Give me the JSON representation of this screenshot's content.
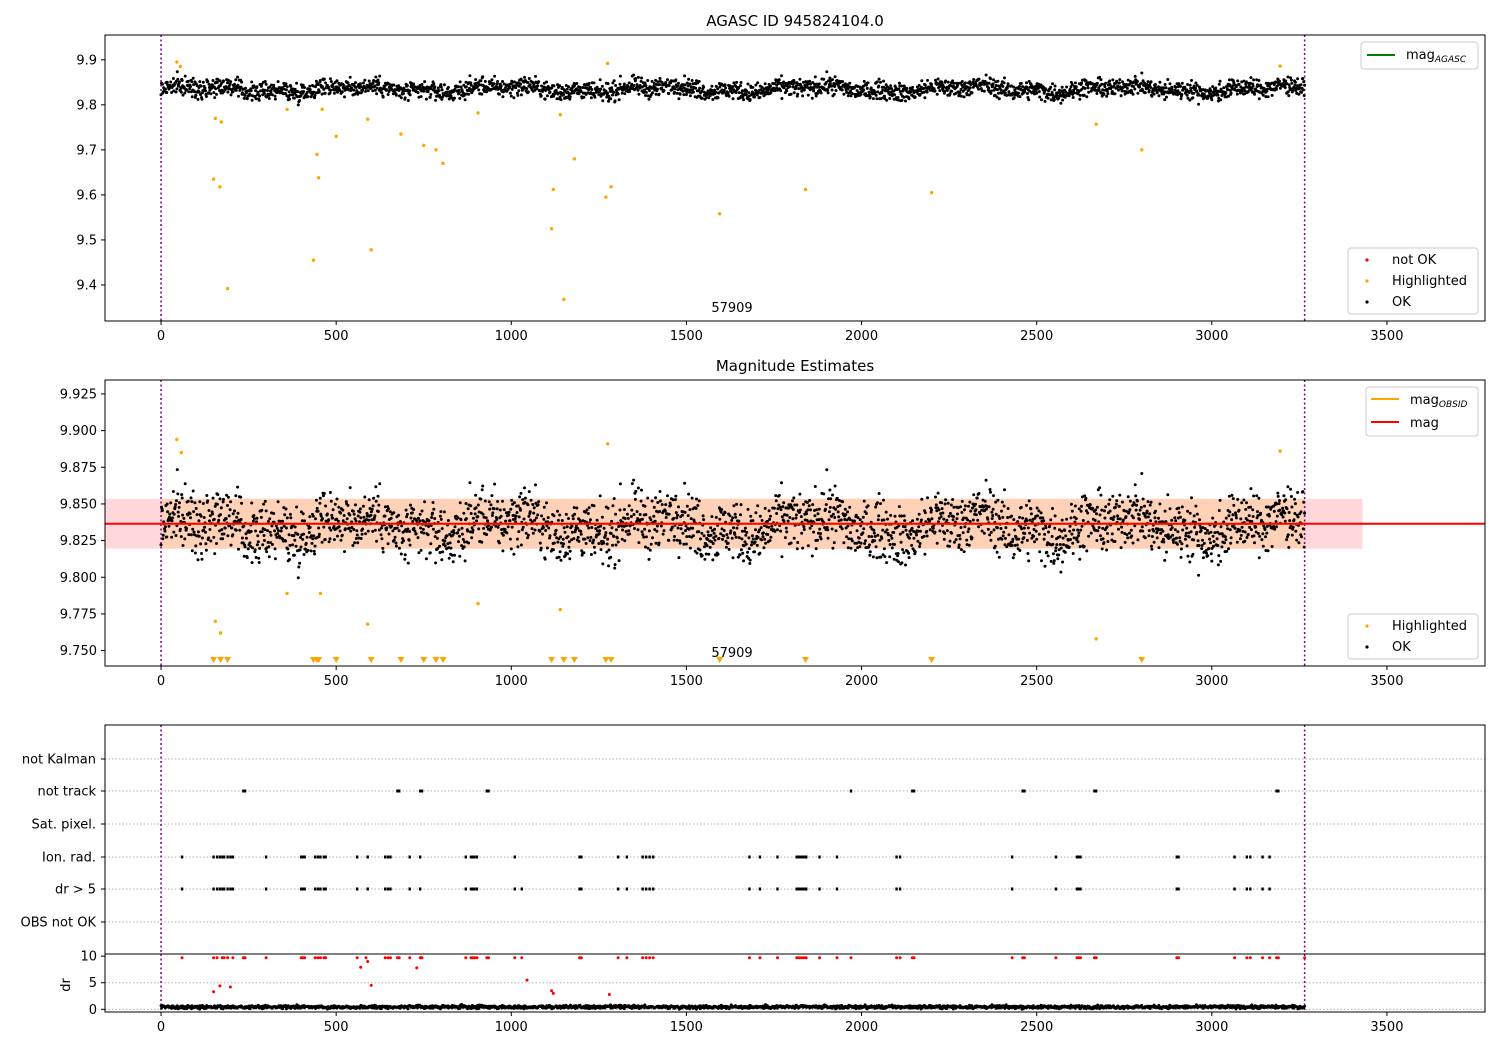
{
  "figure": {
    "panel1_title": "AGASC ID 945824104.0",
    "panel2_title": "Magnitude Estimates",
    "obsid_label": "57909"
  },
  "legends": {
    "p1_line_base": "mag",
    "p1_line_sub": "AGASC",
    "p1_notok": "not OK",
    "p1_highlighted": "Highlighted",
    "p1_ok": "OK",
    "p2_line1_base": "mag",
    "p2_line1_sub": "OBSID",
    "p2_line2": "mag",
    "p2_highlighted": "Highlighted",
    "p2_ok": "OK"
  },
  "colors": {
    "ok": "#000000",
    "highlighted": "#ffa500",
    "not_ok": "#ff0000",
    "mag_agasc_line": "#008000",
    "mag_obsid_line": "#ffa500",
    "mag_line": "#ff0000",
    "obs_boundary": "#800080"
  },
  "chart_data": [
    {
      "type": "scatter",
      "title": "AGASC ID 945824104.0",
      "xlabel": "",
      "ylabel": "",
      "xlim": [
        -160,
        3780
      ],
      "ylim": [
        9.32,
        9.955
      ],
      "x_ticks": [
        0,
        500,
        1000,
        1500,
        2000,
        2500,
        3000,
        3500
      ],
      "y_ticks": [
        9.4,
        9.5,
        9.6,
        9.7,
        9.8,
        9.9
      ],
      "y_tick_labels": [
        "9.4",
        "9.5",
        "9.6",
        "9.7",
        "9.8",
        "9.9"
      ],
      "grid": false,
      "legend_position_line": "top-right",
      "legend_position_points": "bottom-right",
      "obs_boundaries": [
        0,
        3265
      ],
      "obsid_annotation": {
        "x": 1632,
        "text": "57909"
      },
      "series": [
        {
          "name": "OK",
          "kind": "band",
          "x_range": [
            0,
            3265
          ],
          "center": 9.835,
          "spread": 0.018,
          "count": 2600
        },
        {
          "name": "Highlighted",
          "points": [
            [
              45,
              9.895
            ],
            [
              55,
              9.885
            ],
            [
              150,
              9.635
            ],
            [
              155,
              9.77
            ],
            [
              168,
              9.618
            ],
            [
              172,
              9.762
            ],
            [
              190,
              9.392
            ],
            [
              360,
              9.79
            ],
            [
              435,
              9.455
            ],
            [
              445,
              9.69
            ],
            [
              450,
              9.638
            ],
            [
              460,
              9.79
            ],
            [
              500,
              9.73
            ],
            [
              590,
              9.768
            ],
            [
              600,
              9.478
            ],
            [
              685,
              9.735
            ],
            [
              750,
              9.71
            ],
            [
              785,
              9.7
            ],
            [
              805,
              9.67
            ],
            [
              905,
              9.782
            ],
            [
              1115,
              9.525
            ],
            [
              1120,
              9.612
            ],
            [
              1140,
              9.778
            ],
            [
              1150,
              9.368
            ],
            [
              1180,
              9.68
            ],
            [
              1270,
              9.595
            ],
            [
              1275,
              9.892
            ],
            [
              1285,
              9.618
            ],
            [
              1595,
              9.558
            ],
            [
              1840,
              9.612
            ],
            [
              2200,
              9.605
            ],
            [
              2670,
              9.757
            ],
            [
              2800,
              9.7
            ],
            [
              3195,
              9.886
            ]
          ]
        },
        {
          "name": "not OK",
          "points": []
        }
      ]
    },
    {
      "type": "scatter",
      "title": "Magnitude Estimates",
      "xlabel": "",
      "ylabel": "",
      "xlim": [
        -160,
        3780
      ],
      "ylim": [
        9.7395,
        9.9345
      ],
      "x_ticks": [
        0,
        500,
        1000,
        1500,
        2000,
        2500,
        3000,
        3500
      ],
      "y_ticks": [
        9.75,
        9.775,
        9.8,
        9.825,
        9.85,
        9.875,
        9.9,
        9.925
      ],
      "y_tick_labels": [
        "9.750",
        "9.775",
        "9.800",
        "9.825",
        "9.850",
        "9.875",
        "9.900",
        "9.925"
      ],
      "grid": false,
      "legend_position_line": "top-right",
      "legend_position_points": "bottom-right",
      "mag": 9.8365,
      "mag_band": [
        9.8195,
        9.8535
      ],
      "mag_band_x": [
        -160,
        3430
      ],
      "mag_obsid": 9.8365,
      "mag_obsid_band": [
        9.8195,
        9.8535
      ],
      "mag_obsid_band_x": [
        0,
        3265
      ],
      "obs_boundaries": [
        0,
        3265
      ],
      "obsid_annotation": {
        "x": 1632,
        "text": "57909"
      },
      "series": [
        {
          "name": "OK",
          "kind": "band",
          "x_range": [
            0,
            3265
          ],
          "center": 9.835,
          "spread": 0.018,
          "count": 2600
        },
        {
          "name": "Highlighted",
          "points": [
            [
              45,
              9.894
            ],
            [
              58,
              9.885
            ],
            [
              155,
              9.77
            ],
            [
              170,
              9.762
            ],
            [
              360,
              9.789
            ],
            [
              455,
              9.789
            ],
            [
              590,
              9.768
            ],
            [
              905,
              9.782
            ],
            [
              1140,
              9.778
            ],
            [
              1275,
              9.891
            ],
            [
              2670,
              9.758
            ],
            [
              3195,
              9.886
            ]
          ]
        },
        {
          "name": "Highlighted (off-scale, below axis)",
          "marker": "triangle-down",
          "x": [
            150,
            170,
            190,
            435,
            445,
            450,
            500,
            600,
            685,
            750,
            785,
            805,
            1115,
            1150,
            1180,
            1270,
            1285,
            1595,
            1840,
            2200,
            2800
          ]
        }
      ]
    },
    {
      "type": "scatter",
      "title": "",
      "xlabel": "",
      "ylabel": "",
      "xlim": [
        -160,
        3780
      ],
      "categories": [
        "not Kalman",
        "not track",
        "Sat. pixel.",
        "Ion. rad.",
        "dr > 5",
        "OBS not OK"
      ],
      "grid": true,
      "obs_boundaries": [
        0,
        3265
      ],
      "series": [
        {
          "name": "not Kalman",
          "x": []
        },
        {
          "name": "not track",
          "x": [
            235,
            240,
            675,
            680,
            740,
            745,
            930,
            935,
            1970,
            2145,
            2150,
            2460,
            2465,
            2665,
            2670,
            3185,
            3190
          ]
        },
        {
          "name": "Sat. pixel.",
          "x": []
        },
        {
          "name": "Ion. rad.",
          "x": [
            60,
            150,
            160,
            168,
            175,
            180,
            190,
            198,
            205,
            300,
            400,
            405,
            410,
            440,
            448,
            455,
            465,
            470,
            560,
            590,
            640,
            648,
            655,
            710,
            740,
            870,
            885,
            890,
            895,
            902,
            1010,
            1195,
            1200,
            1305,
            1330,
            1375,
            1385,
            1395,
            1405,
            1680,
            1710,
            1760,
            1815,
            1822,
            1828,
            1835,
            1842,
            1880,
            1930,
            2100,
            2110,
            2430,
            2555,
            2615,
            2620,
            2625,
            2900,
            2905,
            3065,
            3100,
            3110,
            3145,
            3165
          ]
        },
        {
          "name": "dr > 5",
          "x": [
            60,
            150,
            160,
            168,
            175,
            180,
            190,
            198,
            205,
            300,
            400,
            405,
            410,
            440,
            448,
            455,
            465,
            470,
            560,
            590,
            640,
            648,
            655,
            710,
            740,
            870,
            885,
            890,
            895,
            902,
            1010,
            1030,
            1195,
            1200,
            1305,
            1330,
            1375,
            1385,
            1395,
            1405,
            1680,
            1710,
            1760,
            1815,
            1822,
            1828,
            1835,
            1842,
            1880,
            1930,
            2100,
            2110,
            2430,
            2555,
            2615,
            2620,
            2625,
            2900,
            2905,
            3065,
            3100,
            3110,
            3145,
            3165
          ]
        },
        {
          "name": "OBS not OK",
          "x": []
        }
      ]
    },
    {
      "type": "scatter",
      "title": "",
      "xlabel": "",
      "ylabel": "dr",
      "xlim": [
        -160,
        3780
      ],
      "ylim": [
        -0.5,
        10.4
      ],
      "x_ticks": [
        0,
        500,
        1000,
        1500,
        2000,
        2500,
        3000,
        3500
      ],
      "y_ticks": [
        0,
        5,
        10
      ],
      "y_tick_labels": [
        "0",
        "5",
        "10"
      ],
      "grid": true,
      "obs_boundaries": [
        0,
        3265
      ],
      "series": [
        {
          "name": "OK",
          "kind": "band",
          "x_range": [
            0,
            3265
          ],
          "center": 0.45,
          "spread": 0.12,
          "count": 2400
        },
        {
          "name": "not OK",
          "points": [
            [
              60,
              9.7
            ],
            [
              150,
              3.3
            ],
            [
              150,
              9.7
            ],
            [
              160,
              9.7
            ],
            [
              168,
              4.4
            ],
            [
              175,
              9.7
            ],
            [
              180,
              9.7
            ],
            [
              190,
              9.7
            ],
            [
              198,
              4.2
            ],
            [
              205,
              9.7
            ],
            [
              235,
              9.7
            ],
            [
              240,
              9.7
            ],
            [
              300,
              9.7
            ],
            [
              400,
              9.7
            ],
            [
              405,
              9.7
            ],
            [
              410,
              9.7
            ],
            [
              440,
              9.7
            ],
            [
              448,
              9.7
            ],
            [
              455,
              9.7
            ],
            [
              465,
              9.7
            ],
            [
              470,
              9.7
            ],
            [
              560,
              9.7
            ],
            [
              570,
              7.9
            ],
            [
              585,
              9.7
            ],
            [
              590,
              9.0
            ],
            [
              600,
              4.5
            ],
            [
              640,
              9.7
            ],
            [
              648,
              9.7
            ],
            [
              655,
              9.7
            ],
            [
              675,
              9.7
            ],
            [
              680,
              9.7
            ],
            [
              710,
              9.7
            ],
            [
              730,
              7.8
            ],
            [
              740,
              9.7
            ],
            [
              745,
              9.7
            ],
            [
              870,
              9.7
            ],
            [
              885,
              9.7
            ],
            [
              890,
              9.7
            ],
            [
              895,
              9.7
            ],
            [
              902,
              9.7
            ],
            [
              930,
              9.7
            ],
            [
              935,
              9.7
            ],
            [
              1010,
              9.7
            ],
            [
              1030,
              9.7
            ],
            [
              1045,
              5.5
            ],
            [
              1115,
              3.5
            ],
            [
              1120,
              3.0
            ],
            [
              1195,
              9.7
            ],
            [
              1200,
              9.7
            ],
            [
              1280,
              2.8
            ],
            [
              1305,
              9.7
            ],
            [
              1330,
              9.7
            ],
            [
              1375,
              9.7
            ],
            [
              1385,
              9.7
            ],
            [
              1395,
              9.7
            ],
            [
              1405,
              9.7
            ],
            [
              1680,
              9.7
            ],
            [
              1710,
              9.7
            ],
            [
              1760,
              9.7
            ],
            [
              1815,
              9.7
            ],
            [
              1822,
              9.7
            ],
            [
              1828,
              9.7
            ],
            [
              1835,
              9.7
            ],
            [
              1842,
              9.7
            ],
            [
              1880,
              9.7
            ],
            [
              1930,
              9.7
            ],
            [
              1970,
              9.7
            ],
            [
              2100,
              9.7
            ],
            [
              2110,
              9.7
            ],
            [
              2145,
              9.7
            ],
            [
              2150,
              9.7
            ],
            [
              2430,
              9.7
            ],
            [
              2460,
              9.7
            ],
            [
              2465,
              9.7
            ],
            [
              2555,
              9.7
            ],
            [
              2615,
              9.7
            ],
            [
              2620,
              9.7
            ],
            [
              2625,
              9.7
            ],
            [
              2665,
              9.7
            ],
            [
              2670,
              9.7
            ],
            [
              2900,
              9.7
            ],
            [
              2905,
              9.7
            ],
            [
              3065,
              9.7
            ],
            [
              3100,
              9.7
            ],
            [
              3110,
              9.7
            ],
            [
              3145,
              9.7
            ],
            [
              3165,
              9.7
            ],
            [
              3185,
              9.7
            ],
            [
              3190,
              9.7
            ],
            [
              3265,
              9.7
            ]
          ]
        }
      ]
    }
  ]
}
